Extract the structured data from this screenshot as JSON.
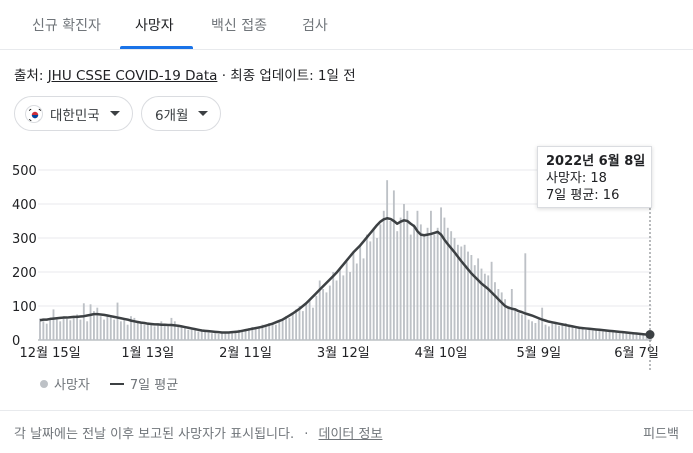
{
  "tabs": [
    {
      "label": "신규 확진자",
      "active": false
    },
    {
      "label": "사망자",
      "active": true
    },
    {
      "label": "백신 접종",
      "active": false
    },
    {
      "label": "검사",
      "active": false
    }
  ],
  "source": {
    "prefix": "출처:",
    "link": "JHU CSSE COVID-19 Data",
    "suffix": "· 최종 업데이트: 1일 전"
  },
  "filters": {
    "region": "대한민국",
    "period": "6개월"
  },
  "tooltip": {
    "date": "2022년 6월 8일",
    "deaths": "사망자: 18",
    "avg": "7일 평균: 16"
  },
  "legend": {
    "bars": "사망자",
    "line": "7일 평균"
  },
  "footer": {
    "note": "각 날짜에는 전날 이후 보고된 사망자가 표시됩니다.",
    "separator": "·",
    "info_link": "데이터 정보",
    "feedback": "피드백"
  },
  "colors": {
    "bar": "#bdc1c6",
    "line": "#3c4043",
    "accent": "#1a73e8"
  },
  "chart_data": {
    "type": "bar",
    "ylim": [
      0,
      500
    ],
    "yticks": [
      0,
      100,
      200,
      300,
      400,
      500
    ],
    "xticks": [
      {
        "label": "12월 15일",
        "index": 3
      },
      {
        "label": "1월 13일",
        "index": 32
      },
      {
        "label": "2월 11일",
        "index": 61
      },
      {
        "label": "3월 12일",
        "index": 90
      },
      {
        "label": "4월 10일",
        "index": 119
      },
      {
        "label": "5월 9일",
        "index": 148
      },
      {
        "label": "6월 7일",
        "index": 177
      }
    ],
    "series": [
      {
        "name": "사망자",
        "type": "bar",
        "values": [
          63,
          55,
          48,
          65,
          90,
          60,
          55,
          70,
          62,
          58,
          65,
          75,
          60,
          108,
          55,
          105,
          85,
          95,
          70,
          60,
          75,
          68,
          60,
          110,
          55,
          60,
          45,
          70,
          65,
          55,
          50,
          45,
          48,
          50,
          40,
          45,
          55,
          45,
          40,
          65,
          55,
          45,
          40,
          35,
          30,
          32,
          28,
          25,
          30,
          28,
          22,
          20,
          20,
          18,
          22,
          25,
          20,
          25,
          28,
          30,
          25,
          30,
          35,
          38,
          32,
          40,
          45,
          42,
          50,
          48,
          45,
          55,
          60,
          70,
          65,
          80,
          90,
          100,
          85,
          110,
          120,
          95,
          130,
          175,
          150,
          140,
          160,
          200,
          175,
          210,
          190,
          230,
          200,
          260,
          225,
          280,
          240,
          310,
          290,
          330,
          300,
          340,
          380,
          470,
          350,
          440,
          320,
          360,
          400,
          380,
          310,
          340,
          380,
          340,
          310,
          330,
          380,
          310,
          330,
          390,
          360,
          330,
          320,
          300,
          280,
          275,
          280,
          260,
          250,
          220,
          240,
          210,
          195,
          190,
          230,
          170,
          150,
          140,
          120,
          100,
          150,
          90,
          80,
          75,
          255,
          60,
          55,
          50,
          60,
          95,
          45,
          40,
          50,
          48,
          42,
          45,
          50,
          40,
          38,
          35,
          40,
          33,
          30,
          32,
          28,
          30,
          28,
          25,
          30,
          27,
          25,
          22,
          20,
          25,
          23,
          20,
          18,
          22,
          20,
          18,
          16,
          18
        ]
      },
      {
        "name": "7일 평균",
        "type": "line",
        "values": [
          58,
          60,
          60,
          62,
          63,
          64,
          65,
          66,
          66,
          67,
          68,
          68,
          69,
          70,
          72,
          74,
          76,
          76,
          75,
          74,
          72,
          70,
          68,
          66,
          64,
          62,
          60,
          57,
          55,
          53,
          51,
          50,
          48,
          47,
          46,
          46,
          45,
          45,
          44,
          44,
          43,
          42,
          40,
          38,
          36,
          34,
          32,
          30,
          28,
          27,
          26,
          25,
          24,
          23,
          22,
          22,
          22,
          23,
          24,
          25,
          27,
          29,
          31,
          33,
          35,
          37,
          39,
          42,
          45,
          48,
          52,
          56,
          60,
          66,
          72,
          78,
          85,
          92,
          100,
          108,
          118,
          128,
          138,
          148,
          158,
          168,
          178,
          188,
          198,
          210,
          222,
          234,
          246,
          258,
          268,
          278,
          290,
          302,
          314,
          326,
          338,
          348,
          355,
          358,
          356,
          350,
          342,
          348,
          352,
          350,
          342,
          335,
          320,
          310,
          308,
          310,
          312,
          315,
          318,
          310,
          295,
          282,
          270,
          258,
          245,
          232,
          220,
          208,
          196,
          186,
          176,
          166,
          158,
          150,
          140,
          130,
          120,
          110,
          100,
          95,
          92,
          90,
          85,
          82,
          78,
          75,
          72,
          68,
          64,
          60,
          57,
          54,
          52,
          50,
          48,
          46,
          44,
          42,
          40,
          38,
          36,
          35,
          34,
          33,
          32,
          31,
          30,
          29,
          28,
          27,
          26,
          25,
          24,
          23,
          22,
          21,
          20,
          19,
          18,
          17,
          16,
          16
        ]
      }
    ]
  }
}
